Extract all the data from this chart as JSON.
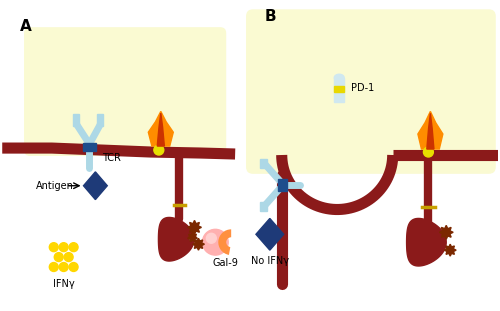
{
  "bg_color": "#ffffff",
  "cell_bg": "#fafad2",
  "membrane_color": "#8b1a1a",
  "tcr_body_color": "#add8e6",
  "tcr_band_color": "#1e4d8c",
  "tcr_diamond_color": "#1e3a78",
  "tim3_ball_color": "#e8e000",
  "flame_color1": "#ff8c00",
  "flame_color2": "#cc3300",
  "spiky_color": "#7b2800",
  "ifn_dots_color": "#ffd700",
  "ifn_dots_edge": "#ccaa00",
  "pd1_body_color": "#d0e8f0",
  "pd1_yellow_band": "#e8d800",
  "gal9_pink": "#f08080",
  "gal9_light": "#ffb0b0",
  "gal9_orange": "#ff9040",
  "connector_color": "#888888",
  "label_A": "A",
  "label_B": "B",
  "label_TCR": "TCR",
  "label_Antigen": "Antigen",
  "label_IFNg": "IFNγ",
  "label_Gal9": "Gal-9",
  "label_NoIFNg": "No IFNγ",
  "label_PD1": "PD-1"
}
